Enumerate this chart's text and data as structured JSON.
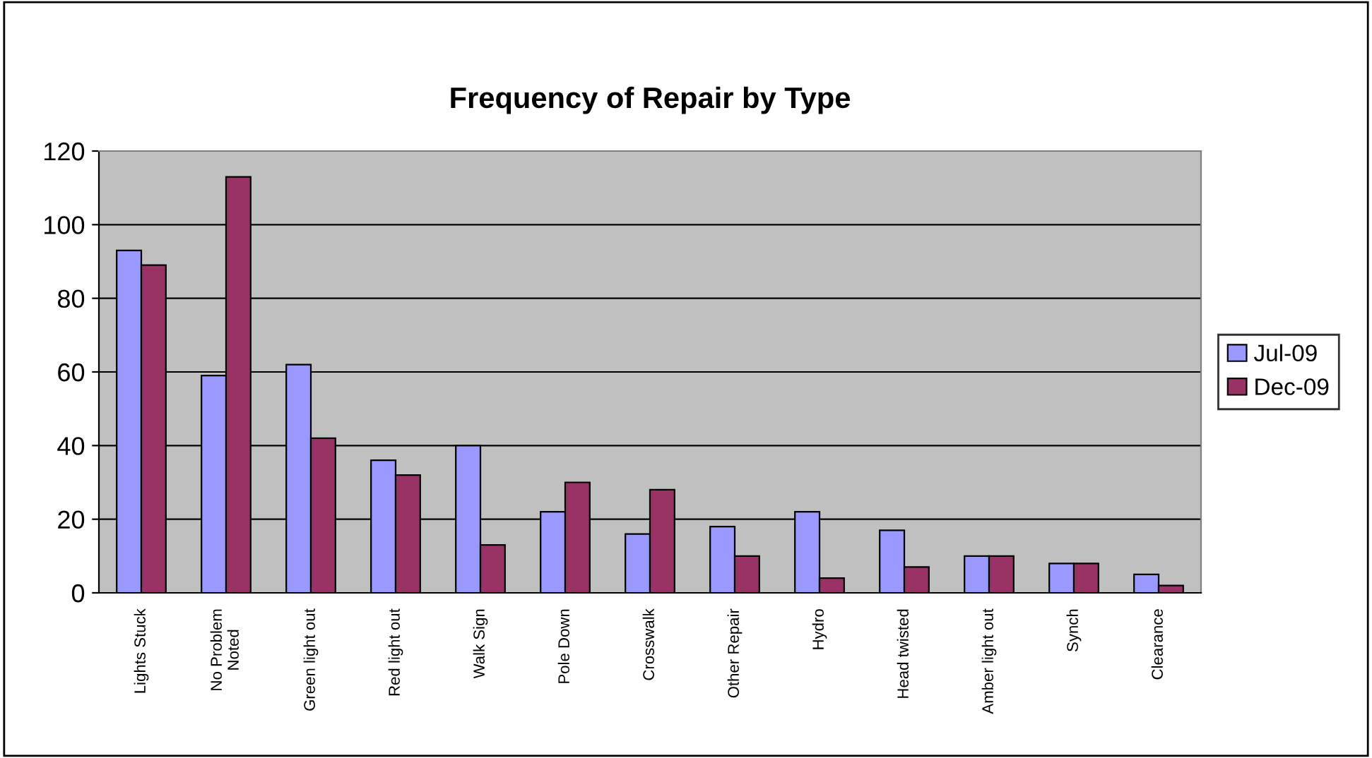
{
  "chart_data": {
    "type": "bar",
    "title": "Frequency of Repair by Type",
    "categories": [
      "Lights Stuck",
      "No Problem\nNoted",
      "Green light out",
      "Red light out",
      "Walk Sign",
      "Pole Down",
      "Crosswalk",
      "Other Repair",
      "Hydro",
      "Head twisted",
      "Amber light out",
      "Synch",
      "Clearance"
    ],
    "series": [
      {
        "name": "Jul-09",
        "color": "#9999ff",
        "values": [
          93,
          59,
          62,
          36,
          40,
          22,
          16,
          18,
          22,
          17,
          10,
          8,
          5
        ]
      },
      {
        "name": "Dec-09",
        "color": "#993366",
        "values": [
          89,
          113,
          42,
          32,
          13,
          30,
          28,
          10,
          4,
          7,
          10,
          8,
          2
        ]
      }
    ],
    "ylim": [
      0,
      120
    ],
    "yticks": [
      0,
      20,
      40,
      60,
      80,
      100,
      120
    ],
    "grid": "y",
    "legend": "right"
  }
}
